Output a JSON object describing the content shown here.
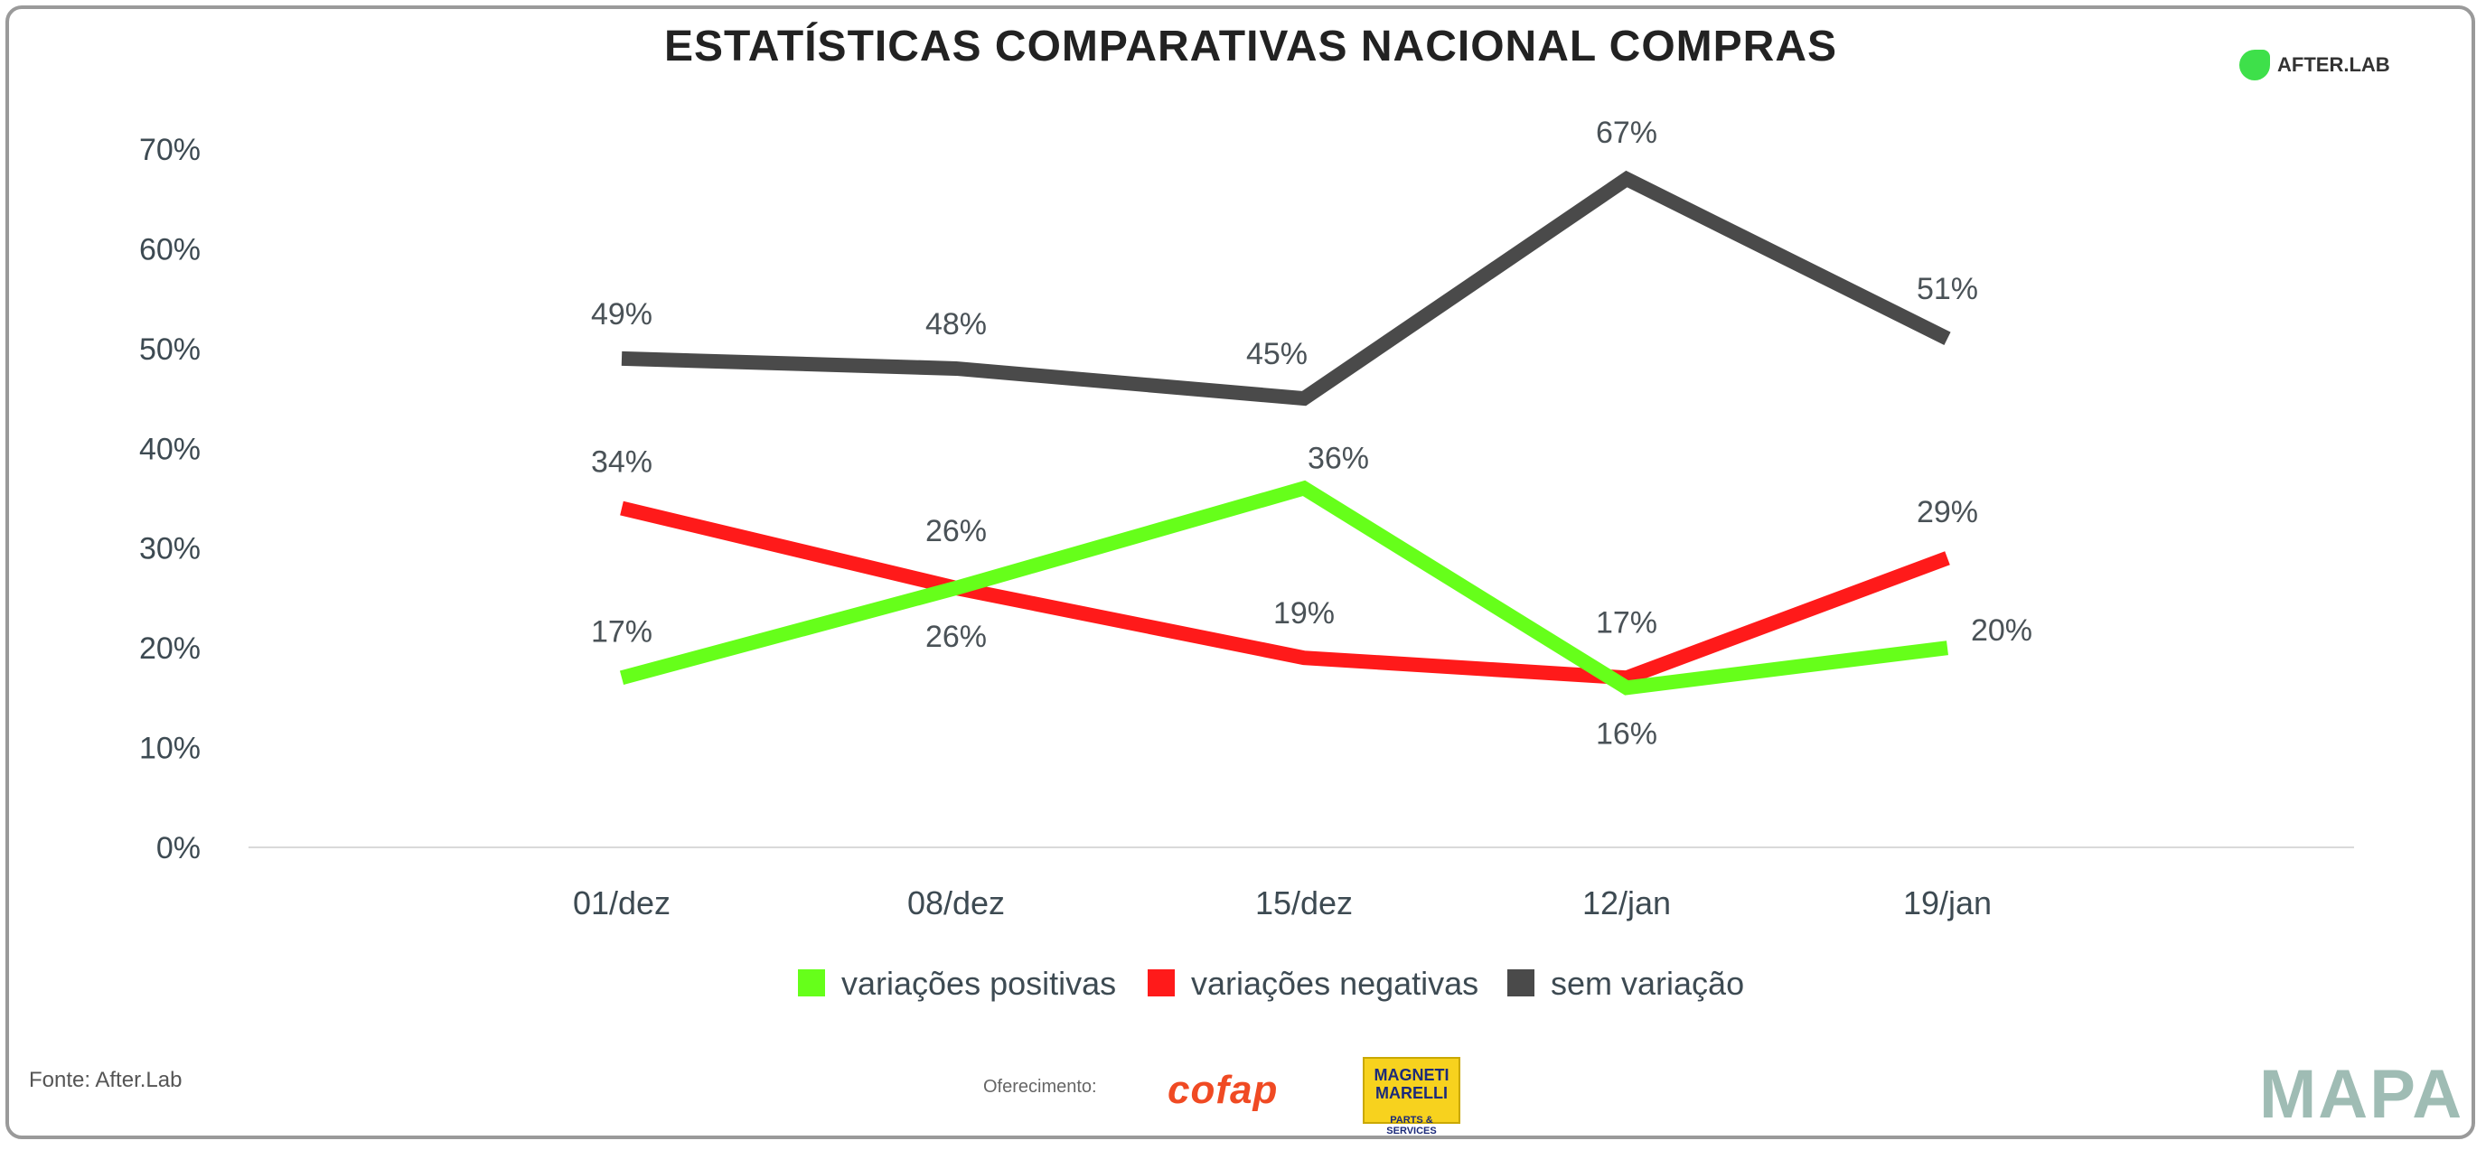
{
  "title": "ESTATÍSTICAS COMPARATIVAS NACIONAL COMPRAS",
  "brand": "AFTER.LAB",
  "source": "Fonte: After.Lab",
  "sponsor_label": "Oferecimento:",
  "sponsors": {
    "cofap": "cofap",
    "magneti_line1": "MAGNETI MARELLI",
    "magneti_line2": "PARTS & SERVICES"
  },
  "mapa_logo": "MAPA",
  "colors": {
    "positivas": "#66ff1a",
    "negativas": "#ff1a1a",
    "sem_variacao": "#4a4a4a"
  },
  "chart_data": {
    "type": "line",
    "title": "ESTATÍSTICAS COMPARATIVAS NACIONAL COMPRAS",
    "xlabel": "",
    "ylabel": "",
    "ylim": [
      0,
      70
    ],
    "yticks": [
      "0%",
      "10%",
      "20%",
      "30%",
      "40%",
      "50%",
      "60%",
      "70%"
    ],
    "categories": [
      "01/dez",
      "08/dez",
      "15/dez",
      "12/jan",
      "19/jan"
    ],
    "legend_position": "bottom",
    "series": [
      {
        "name": "variações positivas",
        "key": "positivas",
        "values": [
          17,
          26,
          36,
          16,
          20
        ],
        "labels": [
          "17%",
          "26%",
          "36%",
          "16%",
          "20%"
        ]
      },
      {
        "name": "variações negativas",
        "key": "negativas",
        "values": [
          34,
          26,
          19,
          17,
          29
        ],
        "labels": [
          "34%",
          "26%",
          "19%",
          "17%",
          "29%"
        ]
      },
      {
        "name": "sem variação",
        "key": "sem_variacao",
        "values": [
          49,
          48,
          45,
          67,
          51
        ],
        "labels": [
          "49%",
          "48%",
          "45%",
          "67%",
          "51%"
        ]
      }
    ]
  }
}
